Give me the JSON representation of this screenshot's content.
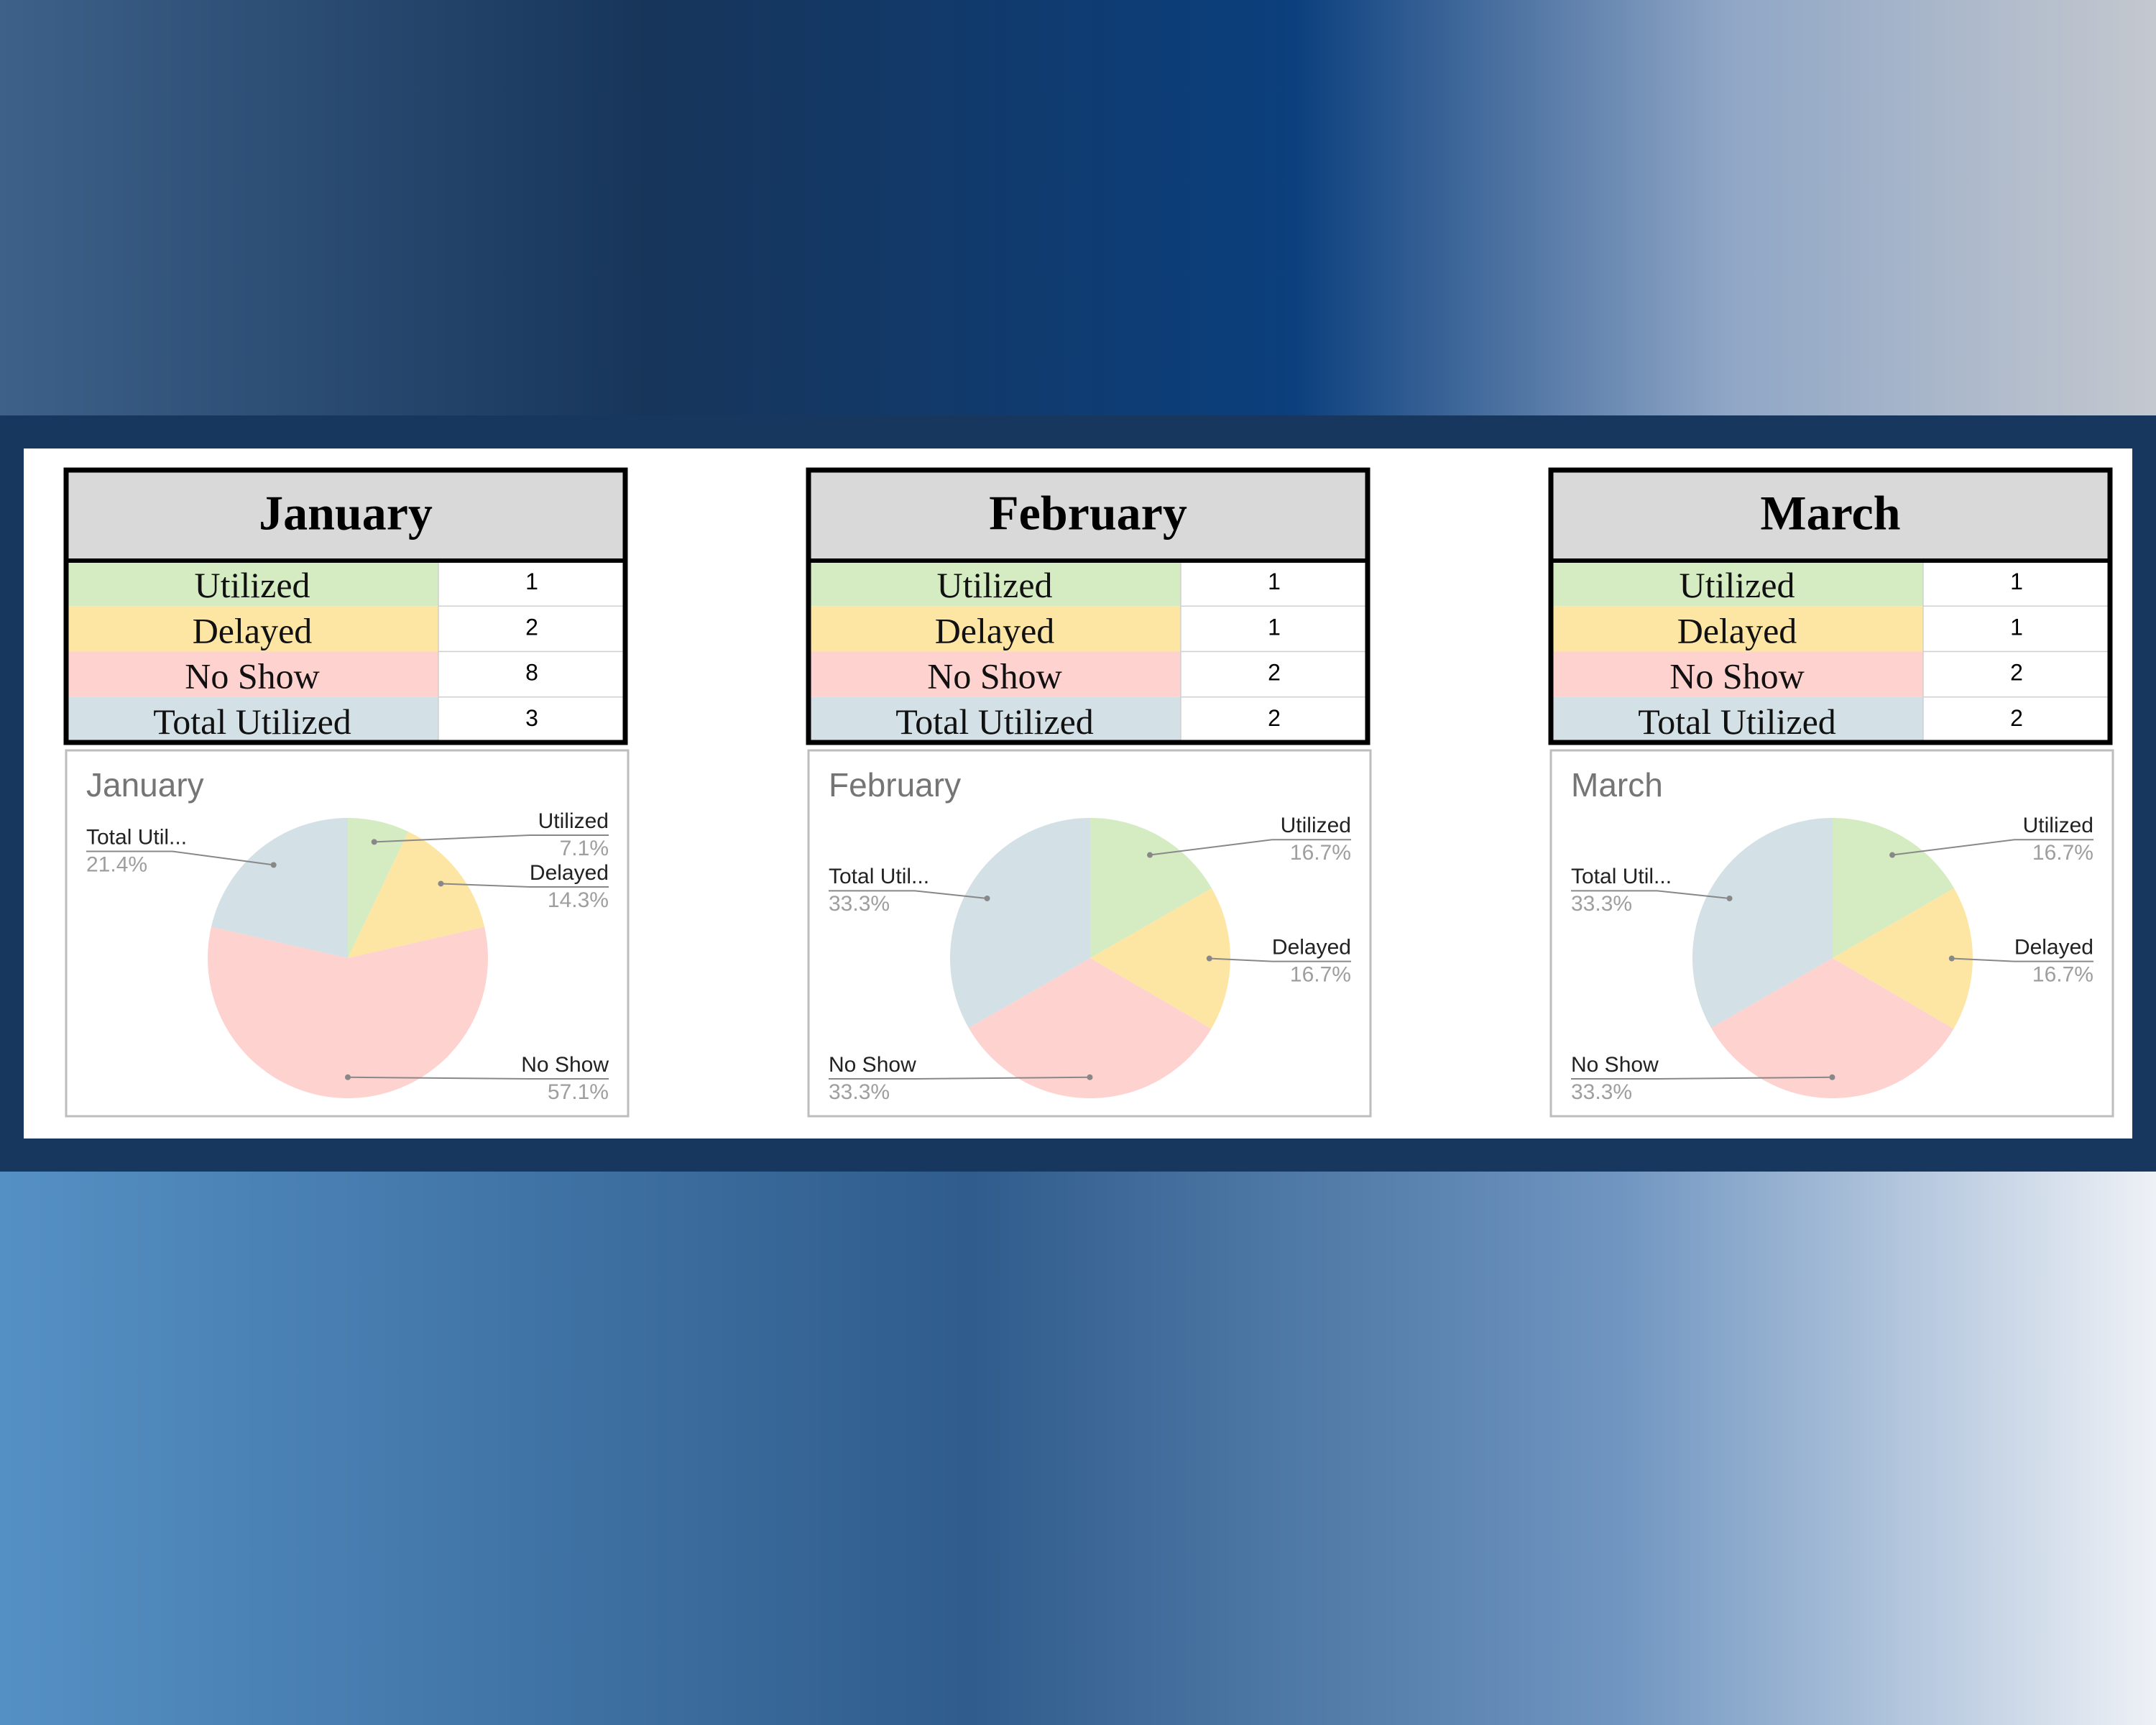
{
  "tables": [
    {
      "title": "January",
      "rows": [
        [
          "Utilized",
          1
        ],
        [
          "Delayed",
          2
        ],
        [
          "No Show",
          8
        ],
        [
          "Total Utilized",
          3
        ]
      ]
    },
    {
      "title": "February",
      "rows": [
        [
          "Utilized",
          1
        ],
        [
          "Delayed",
          1
        ],
        [
          "No Show",
          2
        ],
        [
          "Total Utilized",
          2
        ]
      ]
    },
    {
      "title": "March",
      "rows": [
        [
          "Utilized",
          1
        ],
        [
          "Delayed",
          1
        ],
        [
          "No Show",
          2
        ],
        [
          "Total Utilized",
          2
        ]
      ]
    }
  ],
  "chart_data": [
    {
      "type": "pie",
      "title": "January",
      "categories": [
        "Utilized",
        "Delayed",
        "No Show",
        "Total Util..."
      ],
      "values": [
        7.1,
        14.3,
        57.1,
        21.4
      ],
      "value_labels": [
        "7.1%",
        "14.3%",
        "57.1%",
        "21.4%"
      ],
      "colors": [
        "#d5ecc2",
        "#fde6a3",
        "#fdd2cf",
        "#d3e0e5"
      ]
    },
    {
      "type": "pie",
      "title": "February",
      "categories": [
        "Utilized",
        "Delayed",
        "No Show",
        "Total Util..."
      ],
      "values": [
        16.7,
        16.7,
        33.3,
        33.3
      ],
      "value_labels": [
        "16.7%",
        "16.7%",
        "33.3%",
        "33.3%"
      ],
      "colors": [
        "#d5ecc2",
        "#fde6a3",
        "#fdd2cf",
        "#d3e0e5"
      ]
    },
    {
      "type": "pie",
      "title": "March",
      "categories": [
        "Utilized",
        "Delayed",
        "No Show",
        "Total Util..."
      ],
      "values": [
        16.7,
        16.7,
        33.3,
        33.3
      ],
      "value_labels": [
        "16.7%",
        "16.7%",
        "33.3%",
        "33.3%"
      ],
      "colors": [
        "#d5ecc2",
        "#fde6a3",
        "#fdd2cf",
        "#d3e0e5"
      ]
    }
  ]
}
